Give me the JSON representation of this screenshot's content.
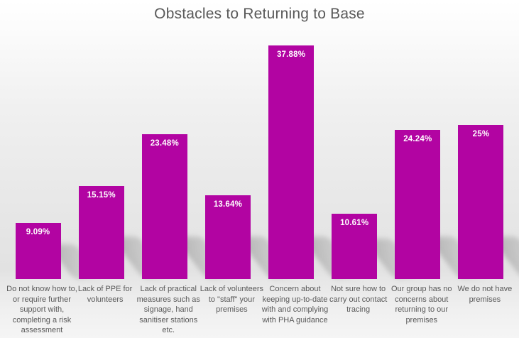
{
  "chart_data": {
    "type": "bar",
    "title": "Obstacles to Returning to Base",
    "categories": [
      "Do not know how to, or require further support with, completing a risk assessment",
      "Lack of PPE for volunteers",
      "Lack of practical measures such as signage, hand sanitiser stations etc.",
      "Lack of volunteers to \"staff\" your premises",
      "Concern about keeping up-to-date with and complying with PHA guidance",
      "Not sure how to carry out contact tracing",
      "Our group has no concerns about returning to our premises",
      "We do not have premises"
    ],
    "values": [
      9.09,
      15.15,
      23.48,
      13.64,
      37.88,
      10.61,
      24.24,
      25
    ],
    "value_labels": [
      "9.09%",
      "15.15%",
      "23.48%",
      "13.64%",
      "37.88%",
      "10.61%",
      "24.24%",
      "25%"
    ],
    "xlabel": "",
    "ylabel": "",
    "ylim": [
      0,
      40
    ],
    "grid": false,
    "legend": false,
    "data_label_position": "inside-top",
    "bar_effect": "perspective-floor-shadow"
  },
  "colors": {
    "bar_fill": "#B204A2",
    "data_label_text": "#FFFFFF",
    "title_text": "#595959",
    "axis_label_text": "#595959",
    "background_top": "#FFFFFF",
    "background_bottom": "#E2E2E2"
  }
}
